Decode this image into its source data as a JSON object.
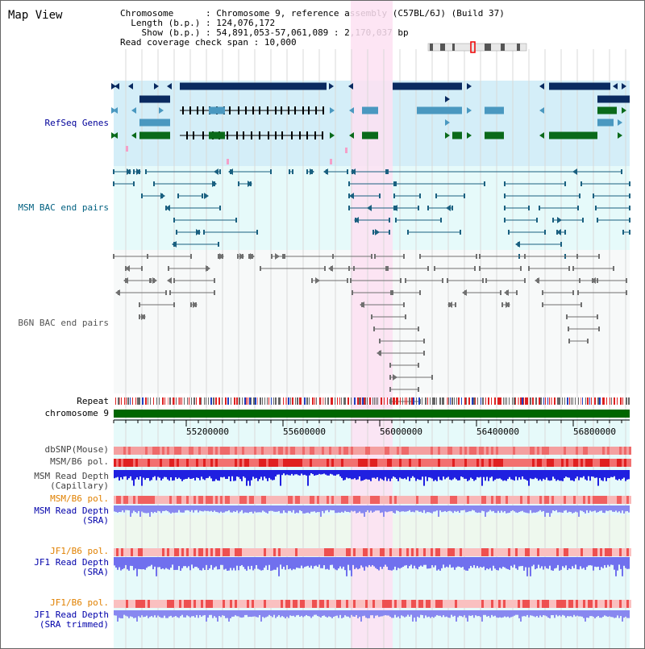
{
  "title": "Map View",
  "info": {
    "chromosome_key": "Chromosome    ",
    "chromosome_val": "Chromosome 9, reference assembly (C57BL/6J) (Build 37)",
    "length_key": "Length (b.p.)",
    "length_val": "124,076,172",
    "show_key": "Show (b.p.)",
    "show_val": "54,891,053-57,061,089 : 2,170,037 bp",
    "span_key": "Read coverage check span",
    "span_val": "10,000"
  },
  "tracks": {
    "refseq": "RefSeq Genes",
    "msm_bac": "MSM BAC end pairs",
    "b6n_bac": "B6N BAC end pairs",
    "repeat": "Repeat",
    "chromosome": "chromosome 9",
    "dbsnp": "dbSNP(Mouse)",
    "msm_b6_pol": "MSM/B6 pol.",
    "msm_depth_cap_1": "MSM Read Depth",
    "msm_depth_cap_2": "(Capillary)",
    "msm_b6_pol_2": "MSM/B6 pol.",
    "msm_depth_sra_1": "MSM Read Depth",
    "msm_depth_sra_2": "(SRA)",
    "jf1_b6_pol": "JF1/B6 pol.",
    "jf1_depth_sra_1": "JF1 Read Depth",
    "jf1_depth_sra_2": "(SRA)",
    "jf1_b6_pol_2": "JF1/B6 pol.",
    "jf1_depth_trim_1": "JF1 Read Depth",
    "jf1_depth_trim_2": "(SRA trimmed)"
  },
  "axis_ticks": [
    "55200000",
    "55600000",
    "56000000",
    "56400000",
    "56800000"
  ],
  "colors": {
    "refseq_bg": "#d4eef8",
    "msm_bg": "#e6fafa",
    "b6n_bg": "#f7f9f9",
    "highlight": "#fde0f2",
    "refseq_label": "#000099",
    "msm_label": "#006080",
    "b6n_label": "#555555",
    "orange_label": "#e08000",
    "blue_label": "#0000aa",
    "gene_dark": "#0a2a60",
    "gene_mid": "#4a98c0",
    "gene_green": "#0a6a1a",
    "bac_msm": "#1a6080",
    "bac_b6n": "#707070",
    "chromosome_bar": "#006600",
    "depth_blue": "#2020e0",
    "depth_light": "#8888f0"
  }
}
